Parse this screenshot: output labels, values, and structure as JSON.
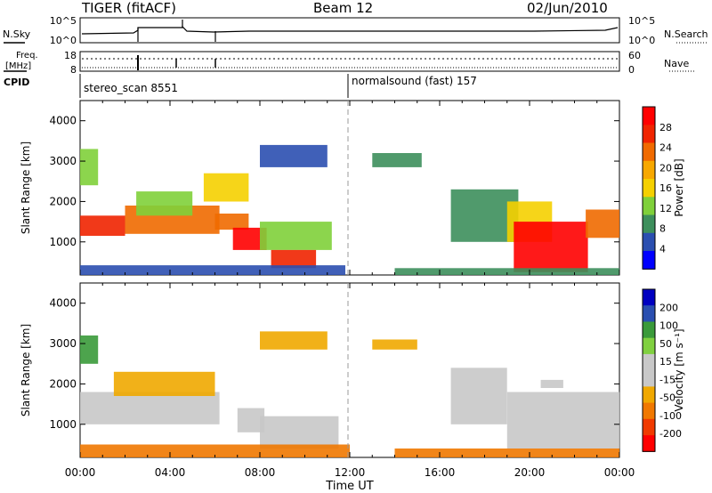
{
  "header": {
    "station": "TIGER (fitACF)",
    "beam": "Beam 12",
    "date": "02/Jun/2010"
  },
  "summary": {
    "left_label": "N.Sky",
    "right_label": "N.Search",
    "left_ticks": [
      "10^5",
      "10^0"
    ],
    "right_ticks": [
      "10^5",
      "10^0"
    ]
  },
  "freq": {
    "left_label_line1": "Freq.",
    "left_label_line2": "[MHz]",
    "right_label": "Nave",
    "left_ticks": [
      "18",
      "8"
    ],
    "right_ticks": [
      "60",
      "0"
    ]
  },
  "cpid": {
    "label": "CPID",
    "segments": [
      {
        "text": "stereo_scan 8551",
        "start_hour": 0
      },
      {
        "text": "normalsound (fast) 157",
        "start_hour": 12
      }
    ]
  },
  "colors": {
    "power": [
      "#0000ff",
      "#2b4fb0",
      "#3d8f5c",
      "#7fd03a",
      "#f5d000",
      "#f7a800",
      "#f06a00",
      "#f02400",
      "#ff0000"
    ],
    "velocity": [
      "#ff0000",
      "#f03a00",
      "#f07800",
      "#f0a800",
      "#c8c8c8",
      "#c8c8c8",
      "#80d040",
      "#3a9a3a",
      "#2a4fb0",
      "#0000c0"
    ]
  },
  "chart_data": [
    {
      "type": "heatmap",
      "name_key": "power",
      "ylabel": "Slant Range [km]",
      "colorbar_label": "Power [dB]",
      "colorbar_ticks": [
        "28",
        "24",
        "20",
        "16",
        "12",
        "8",
        "4"
      ],
      "yticks": [
        "4000",
        "3000",
        "2000",
        "1000"
      ],
      "ylim": [
        180,
        4500
      ],
      "xlim": [
        0,
        24
      ],
      "colorbar_range": [
        0,
        32
      ],
      "regions": [
        {
          "x0": 0.0,
          "x1": 2.0,
          "y0": 1150,
          "y1": 1650,
          "v": 26
        },
        {
          "x0": 2.0,
          "x1": 6.2,
          "y0": 1200,
          "y1": 1900,
          "v": 22
        },
        {
          "x0": 2.5,
          "x1": 5.0,
          "y0": 1650,
          "y1": 2250,
          "v": 14
        },
        {
          "x0": 6.0,
          "x1": 7.5,
          "y0": 1300,
          "y1": 1700,
          "v": 24
        },
        {
          "x0": 6.8,
          "x1": 8.3,
          "y0": 800,
          "y1": 1350,
          "v": 30
        },
        {
          "x0": 8.0,
          "x1": 11.2,
          "y0": 800,
          "y1": 1500,
          "v": 12
        },
        {
          "x0": 8.5,
          "x1": 10.5,
          "y0": 350,
          "y1": 800,
          "v": 26
        },
        {
          "x0": 0.0,
          "x1": 11.8,
          "y0": 180,
          "y1": 420,
          "v": 6
        },
        {
          "x0": 0.0,
          "x1": 0.8,
          "y0": 2400,
          "y1": 3300,
          "v": 14
        },
        {
          "x0": 5.5,
          "x1": 7.5,
          "y0": 2000,
          "y1": 2700,
          "v": 16
        },
        {
          "x0": 8.0,
          "x1": 11.0,
          "y0": 2850,
          "y1": 3400,
          "v": 6
        },
        {
          "x0": 13.0,
          "x1": 15.2,
          "y0": 2850,
          "y1": 3200,
          "v": 8
        },
        {
          "x0": 16.5,
          "x1": 19.5,
          "y0": 1000,
          "y1": 2300,
          "v": 8
        },
        {
          "x0": 19.0,
          "x1": 21.0,
          "y0": 1000,
          "y1": 2000,
          "v": 16
        },
        {
          "x0": 19.3,
          "x1": 22.6,
          "y0": 250,
          "y1": 1500,
          "v": 30
        },
        {
          "x0": 22.5,
          "x1": 24.0,
          "y0": 1100,
          "y1": 1800,
          "v": 24
        },
        {
          "x0": 14.0,
          "x1": 24.0,
          "y0": 180,
          "y1": 350,
          "v": 8
        }
      ]
    },
    {
      "type": "heatmap",
      "name_key": "velocity",
      "ylabel": "Slant Range [km]",
      "colorbar_label": "Velocity [m s⁻¹]",
      "colorbar_ticks": [
        "200",
        "100",
        "50",
        "15",
        "-15",
        "-50",
        "-100",
        "-200"
      ],
      "yticks": [
        "4000",
        "3000",
        "2000",
        "1000"
      ],
      "ylim": [
        180,
        4500
      ],
      "xlim": [
        0,
        24
      ],
      "regions": [
        {
          "x0": 0.0,
          "x1": 6.2,
          "y0": 1000,
          "y1": 1800,
          "v": 0
        },
        {
          "x0": 1.5,
          "x1": 6.0,
          "y0": 1700,
          "y1": 2300,
          "v": -20
        },
        {
          "x0": 0.0,
          "x1": 0.8,
          "y0": 2500,
          "y1": 3200,
          "v": 150
        },
        {
          "x0": 7.0,
          "x1": 8.2,
          "y0": 800,
          "y1": 1400,
          "v": 40
        },
        {
          "x0": 8.0,
          "x1": 11.5,
          "y0": 400,
          "y1": 1200,
          "v": 0
        },
        {
          "x0": 0.0,
          "x1": 12.0,
          "y0": 180,
          "y1": 500,
          "v": -60
        },
        {
          "x0": 8.0,
          "x1": 11.0,
          "y0": 2850,
          "y1": 3300,
          "v": -20
        },
        {
          "x0": 13.0,
          "x1": 15.0,
          "y0": 2850,
          "y1": 3100,
          "v": -20
        },
        {
          "x0": 16.5,
          "x1": 19.0,
          "y0": 1000,
          "y1": 2400,
          "v": 0
        },
        {
          "x0": 19.0,
          "x1": 24.0,
          "y0": 400,
          "y1": 1800,
          "v": 0
        },
        {
          "x0": 14.0,
          "x1": 24.0,
          "y0": 180,
          "y1": 400,
          "v": -60
        },
        {
          "x0": 20.5,
          "x1": 21.5,
          "y0": 1900,
          "y1": 2100,
          "v": 40
        }
      ]
    }
  ],
  "xaxis": {
    "label": "Time UT",
    "ticks": [
      "00:00",
      "04:00",
      "08:00",
      "12:00",
      "16:00",
      "20:00",
      "00:00"
    ]
  }
}
